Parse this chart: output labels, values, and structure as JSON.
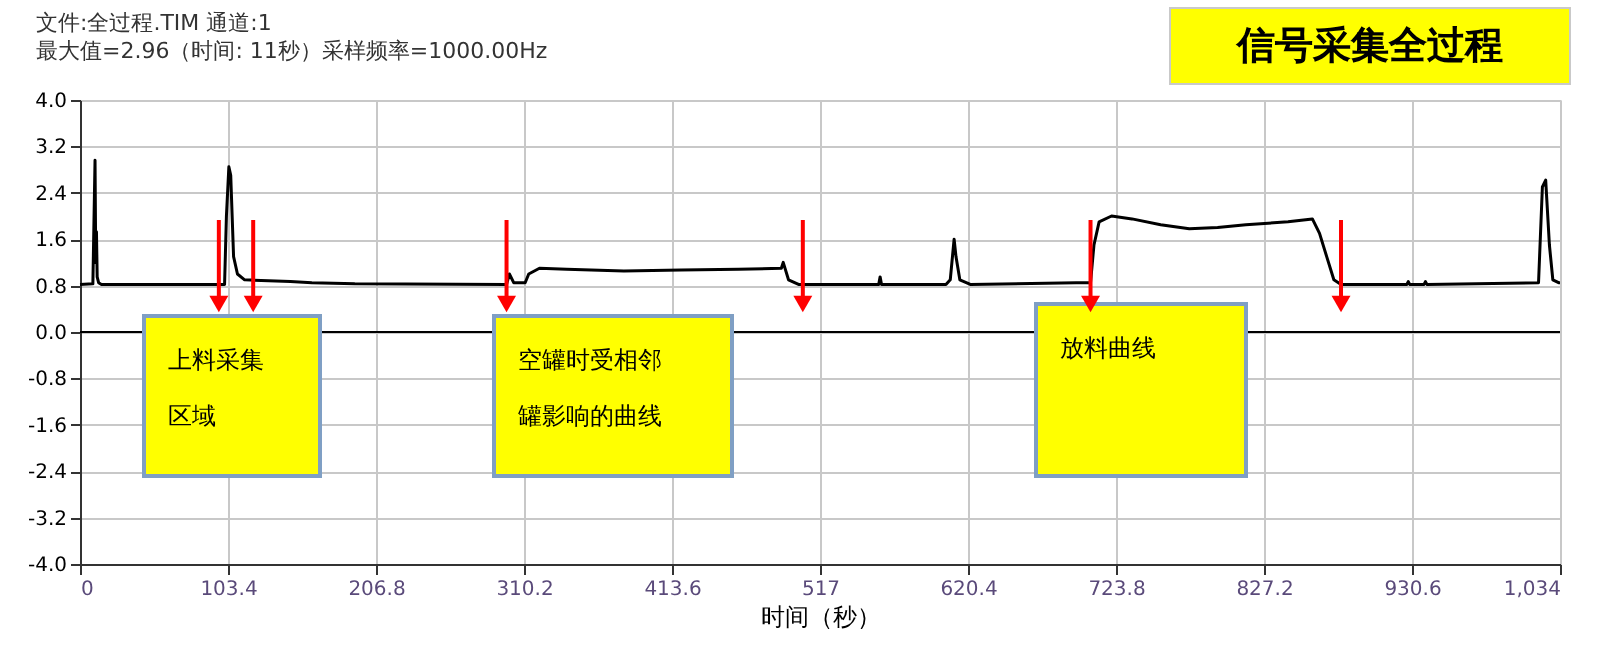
{
  "chart_data": {
    "type": "line",
    "title": "信号采集全过程",
    "xlabel": "时间（秒）",
    "x": [
      0,
      9,
      10.5,
      11,
      11.5,
      12,
      13,
      15,
      101,
      102.3,
      104,
      105.3,
      107.3,
      110,
      115,
      147,
      162,
      192,
      298,
      300,
      303,
      311,
      313.5,
      321,
      340,
      380,
      420,
      460,
      490,
      491.3,
      495,
      502,
      558,
      559,
      560,
      605,
      608,
      610.7,
      612,
      614.7,
      622,
      696,
      706,
      708.4,
      712,
      720.7,
      735,
      755,
      775,
      794.8,
      814.5,
      844,
      861,
      866,
      871,
      876,
      881,
      927,
      928,
      929,
      939,
      940,
      941,
      1019,
      1021.7,
      1024,
      1026.6,
      1029,
      1033,
      1034
    ],
    "series": [
      {
        "color": "#000000",
        "values": [
          0.82,
          0.83,
          2.96,
          1.2,
          1.73,
          0.95,
          0.85,
          0.82,
          0.82,
          2.0,
          2.85,
          2.7,
          1.3,
          1.0,
          0.9,
          0.87,
          0.85,
          0.83,
          0.82,
          1.0,
          0.85,
          0.85,
          1.0,
          1.1,
          1.08,
          1.05,
          1.07,
          1.08,
          1.1,
          1.2,
          0.9,
          0.82,
          0.82,
          0.95,
          0.82,
          0.82,
          0.9,
          1.6,
          1.3,
          0.9,
          0.82,
          0.85,
          0.85,
          1.5,
          1.9,
          2.0,
          1.95,
          1.85,
          1.78,
          1.8,
          1.85,
          1.9,
          1.95,
          1.7,
          1.3,
          0.9,
          0.82,
          0.82,
          0.87,
          0.82,
          0.82,
          0.87,
          0.82,
          0.85,
          2.5,
          2.62,
          1.5,
          0.9,
          0.85,
          0.85
        ]
      }
    ],
    "xlim": [
      0,
      1034
    ],
    "xticks": [
      0,
      103.4,
      206.8,
      310.2,
      413.6,
      517,
      620.4,
      723.8,
      827.2,
      930.6,
      {
        "value": 1034,
        "label": "1,034"
      }
    ],
    "ylim": [
      -4.0,
      4.0
    ],
    "yticks": [
      {
        "value": -4,
        "label": "-4.0"
      },
      -3.2,
      -2.4,
      -1.6,
      -0.8,
      {
        "value": 0,
        "label": "0.0"
      },
      0.8,
      1.6,
      2.4,
      3.2,
      {
        "value": 4,
        "label": "4.0"
      }
    ],
    "grid": true,
    "marker": "none",
    "line_style": "solid",
    "ref_lines": [
      {
        "axis": "y",
        "value": 0,
        "color": "#000000"
      }
    ],
    "annotations": [
      "文件:全过程.TIM 通道:1",
      "最大值=2.96（时间:    11秒）采样频率=1000.00Hz",
      "上料采集区域",
      "空罐时受相邻罐影响的曲线",
      "放料曲线"
    ]
  }
}
